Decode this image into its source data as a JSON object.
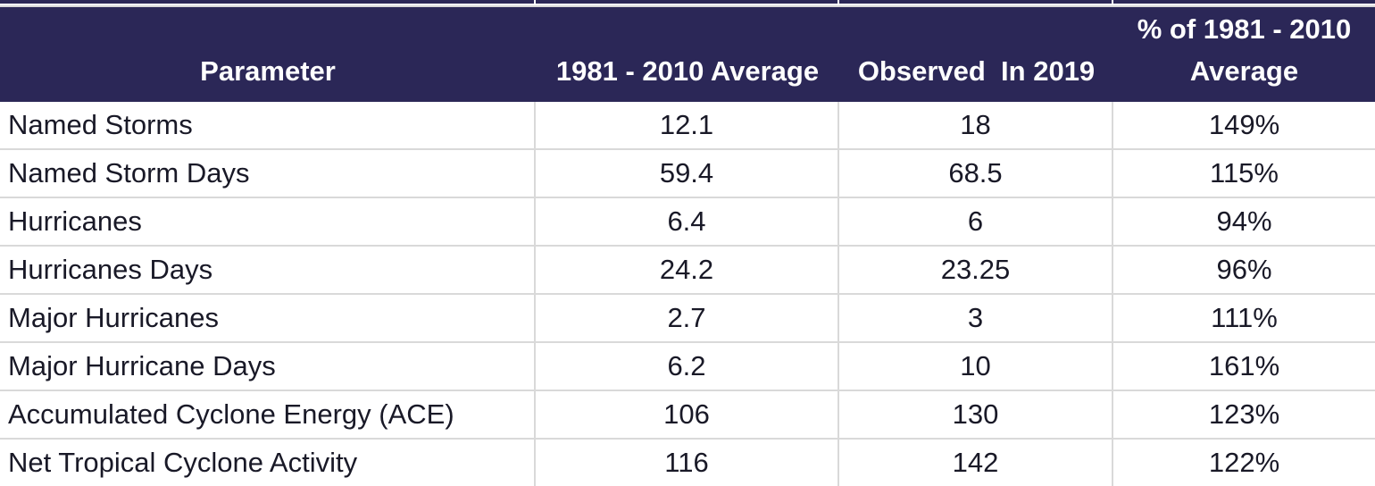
{
  "table": {
    "columns": [
      {
        "label": "Parameter"
      },
      {
        "label": "1981 - 2010 Average"
      },
      {
        "label": "Observed  In 2019"
      },
      {
        "label_line1": "% of 1981 - 2010",
        "label_line2": "Average"
      }
    ],
    "rows": [
      {
        "parameter": "Named Storms",
        "average": "12.1",
        "observed": "18",
        "percent": "149%"
      },
      {
        "parameter": "Named Storm Days",
        "average": "59.4",
        "observed": "68.5",
        "percent": "115%"
      },
      {
        "parameter": "Hurricanes",
        "average": "6.4",
        "observed": "6",
        "percent": "94%"
      },
      {
        "parameter": "Hurricanes Days",
        "average": "24.2",
        "observed": "23.25",
        "percent": "96%"
      },
      {
        "parameter": "Major Hurricanes",
        "average": "2.7",
        "observed": "3",
        "percent": "111%"
      },
      {
        "parameter": "Major Hurricane Days",
        "average": "6.2",
        "observed": "10",
        "percent": "161%"
      },
      {
        "parameter": "Accumulated Cyclone Energy (ACE)",
        "average": "106",
        "observed": "130",
        "percent": "123%"
      },
      {
        "parameter": "Net Tropical Cyclone Activity",
        "average": "116",
        "observed": "142",
        "percent": "122%"
      }
    ]
  },
  "colors": {
    "header_bg": "#2b2757",
    "header_text": "#ffffff",
    "body_text": "#191927",
    "gridline": "#d9d9d9"
  },
  "chart_data": {
    "type": "table",
    "title": "",
    "columns": [
      "Parameter",
      "1981 - 2010 Average",
      "Observed In 2019",
      "% of 1981 - 2010 Average"
    ],
    "rows": [
      [
        "Named Storms",
        12.1,
        18,
        "149%"
      ],
      [
        "Named Storm Days",
        59.4,
        68.5,
        "115%"
      ],
      [
        "Hurricanes",
        6.4,
        6,
        "94%"
      ],
      [
        "Hurricanes Days",
        24.2,
        23.25,
        "96%"
      ],
      [
        "Major Hurricanes",
        2.7,
        3,
        "111%"
      ],
      [
        "Major Hurricane Days",
        6.2,
        10,
        "161%"
      ],
      [
        "Accumulated Cyclone Energy (ACE)",
        106,
        130,
        "123%"
      ],
      [
        "Net Tropical Cyclone Activity",
        116,
        142,
        "122%"
      ]
    ],
    "layout_hints": {
      "header_fill": "#2b2757",
      "header_text_color": "#ffffff",
      "gridlines": true,
      "first_column_align": "left",
      "value_columns_align": "center"
    }
  }
}
